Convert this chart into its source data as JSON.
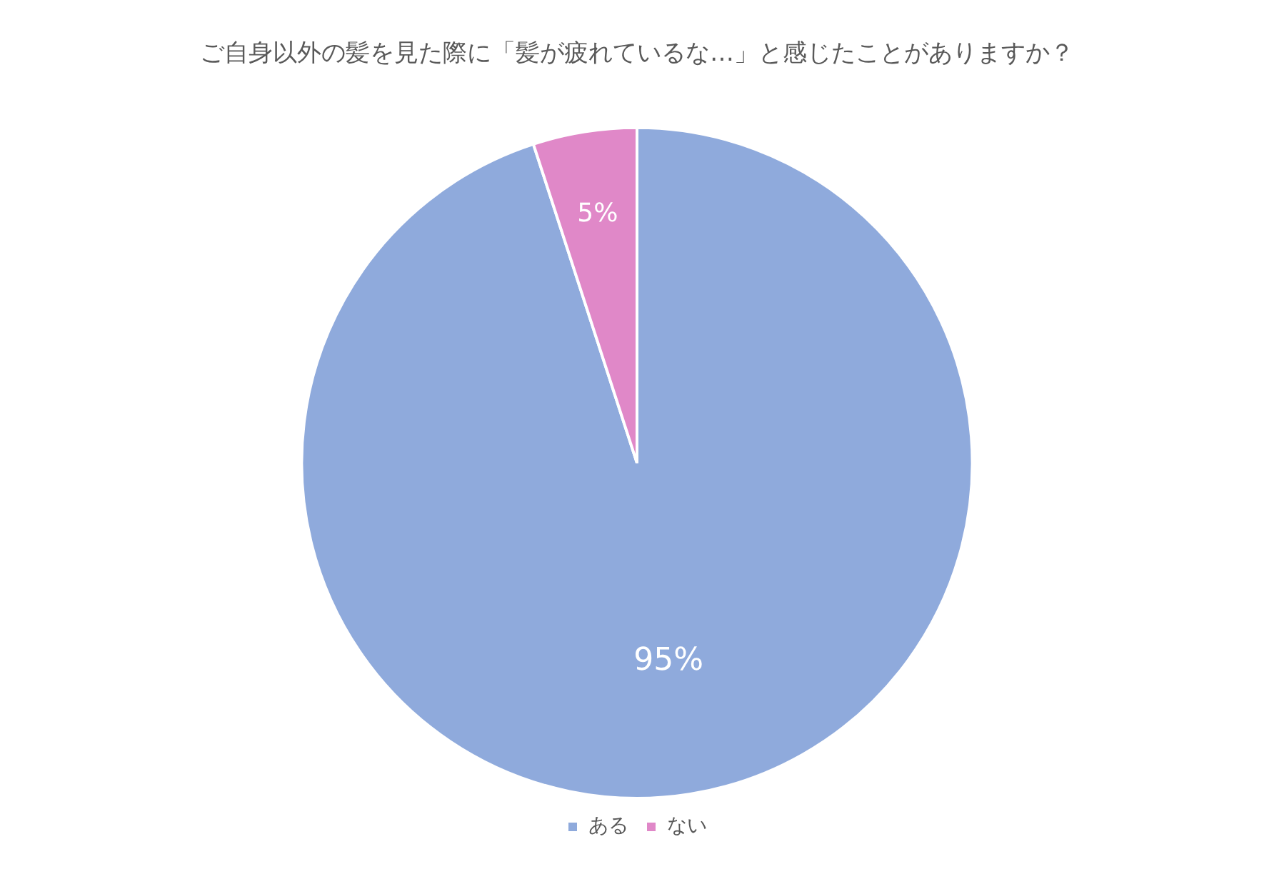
{
  "chart_data": {
    "type": "pie",
    "title": "ご自身以外の髪を見た際に「髪が疲れているな…」と感じたことがありますか？",
    "categories": [
      "ある",
      "ない"
    ],
    "values": [
      95,
      5
    ],
    "colors": [
      "#8faadc",
      "#e088c8"
    ],
    "value_labels": [
      "95%",
      "5%"
    ],
    "legend": "bottom"
  }
}
